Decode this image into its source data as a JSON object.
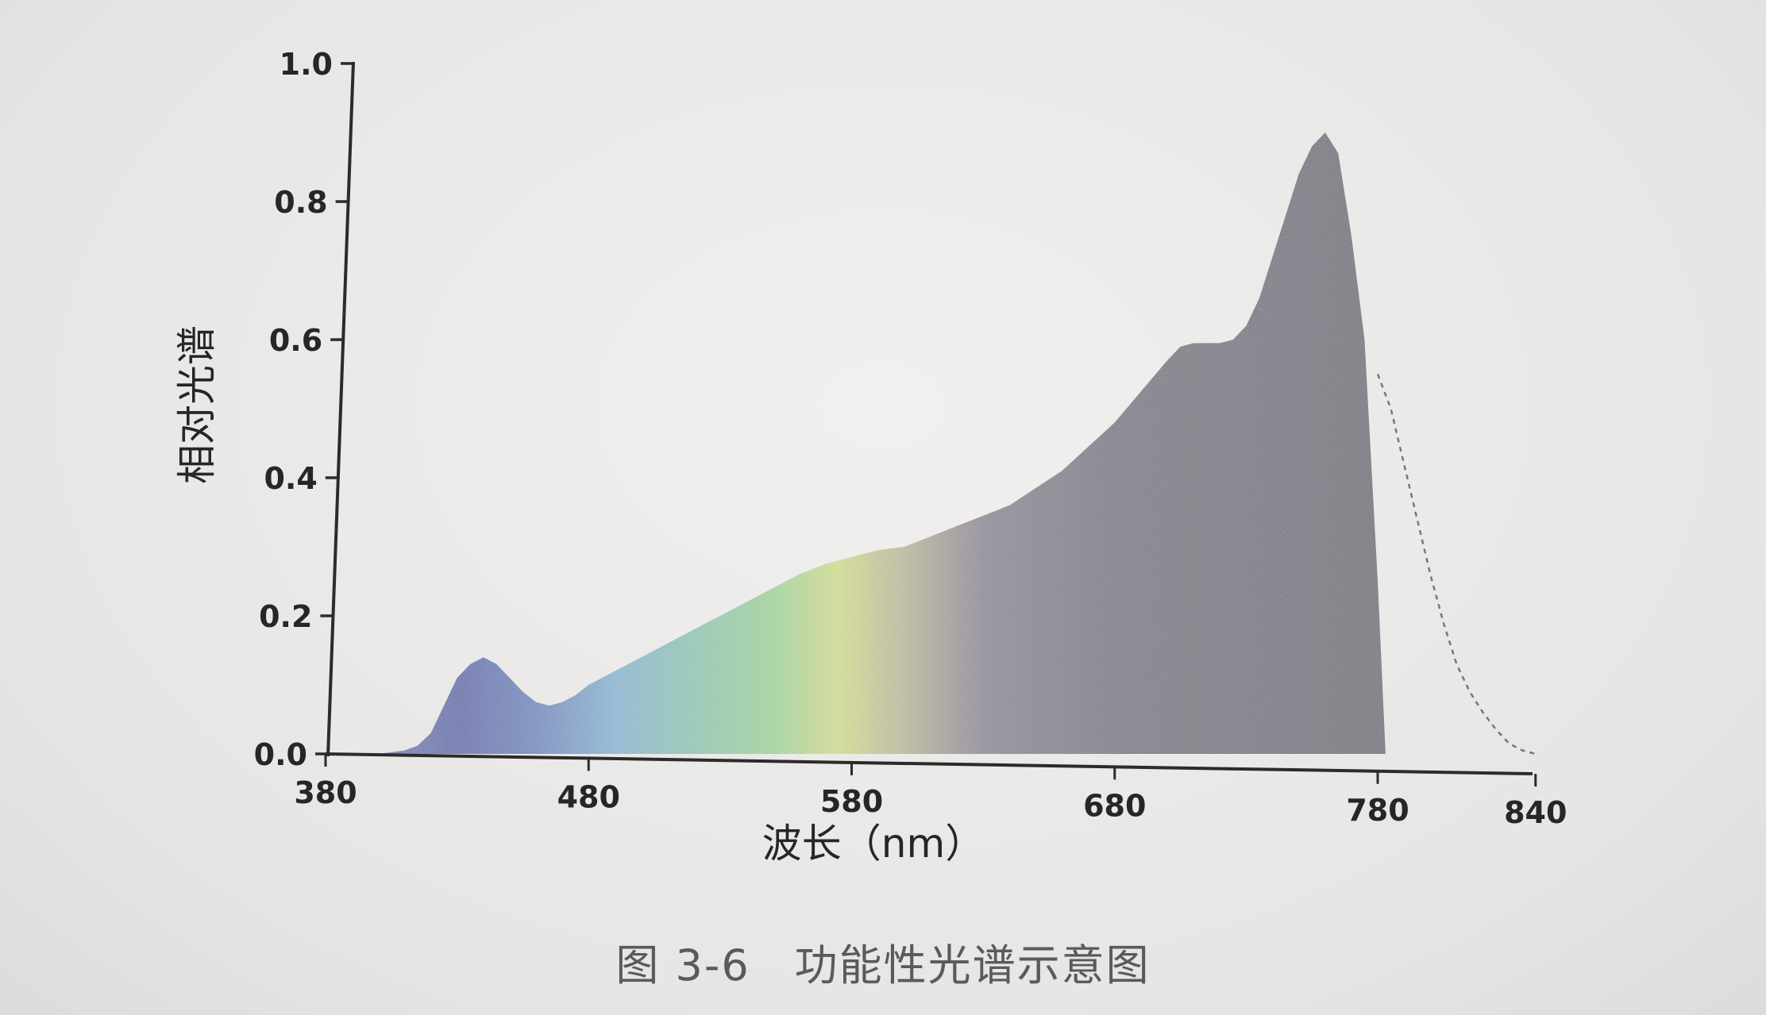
{
  "caption": "图 3-6　功能性光谱示意图",
  "chart_data": {
    "type": "area",
    "xlabel": "波长（nm）",
    "ylabel": "相对光谱",
    "x_ticks": [
      380,
      480,
      580,
      680,
      780,
      840
    ],
    "y_ticks": [
      0.0,
      0.2,
      0.4,
      0.6,
      0.8,
      1.0
    ],
    "y_tick_labels": [
      "0.0",
      "0.2",
      "0.4",
      "0.6",
      "0.8",
      "1.0"
    ],
    "xlim": [
      380,
      860
    ],
    "ylim": [
      0,
      1.0
    ],
    "grid": false,
    "series": [
      {
        "style": "filled-gradient",
        "x": [
          380,
          400,
          410,
          415,
          420,
          425,
          430,
          435,
          440,
          445,
          450,
          455,
          460,
          465,
          470,
          475,
          480,
          485,
          490,
          500,
          510,
          520,
          530,
          540,
          550,
          560,
          570,
          580,
          590,
          600,
          610,
          620,
          630,
          640,
          650,
          660,
          670,
          680,
          690,
          700,
          705,
          710,
          715,
          720,
          725,
          730,
          735,
          740,
          745,
          750,
          755,
          760,
          765,
          770,
          775,
          780,
          783
        ],
        "y": [
          0.0,
          0.0,
          0.005,
          0.012,
          0.03,
          0.07,
          0.11,
          0.13,
          0.14,
          0.13,
          0.11,
          0.09,
          0.075,
          0.07,
          0.075,
          0.085,
          0.1,
          0.11,
          0.12,
          0.14,
          0.16,
          0.18,
          0.2,
          0.22,
          0.24,
          0.26,
          0.275,
          0.285,
          0.295,
          0.3,
          0.315,
          0.33,
          0.345,
          0.36,
          0.385,
          0.41,
          0.445,
          0.48,
          0.525,
          0.57,
          0.59,
          0.595,
          0.595,
          0.595,
          0.6,
          0.62,
          0.66,
          0.72,
          0.78,
          0.84,
          0.88,
          0.9,
          0.87,
          0.75,
          0.6,
          0.25,
          0.0
        ]
      },
      {
        "style": "dashed",
        "x": [
          780,
          785,
          790,
          795,
          800,
          805,
          810,
          815,
          820,
          825,
          830,
          835,
          840
        ],
        "y": [
          0.55,
          0.5,
          0.42,
          0.34,
          0.26,
          0.19,
          0.13,
          0.09,
          0.06,
          0.035,
          0.015,
          0.005,
          0.0
        ]
      }
    ]
  },
  "colors": {
    "axis": "#2b2b2b",
    "gradient_stops": [
      {
        "x": 380,
        "color": "#8a8fb8"
      },
      {
        "x": 430,
        "color": "#5d68a8"
      },
      {
        "x": 460,
        "color": "#6e86bb"
      },
      {
        "x": 490,
        "color": "#86b3d0"
      },
      {
        "x": 520,
        "color": "#8dc3b0"
      },
      {
        "x": 550,
        "color": "#9fcf98"
      },
      {
        "x": 575,
        "color": "#cfd98c"
      },
      {
        "x": 600,
        "color": "#b8b59a"
      },
      {
        "x": 630,
        "color": "#8a8592"
      },
      {
        "x": 680,
        "color": "#77737f"
      },
      {
        "x": 780,
        "color": "#6d6a75"
      }
    ]
  }
}
